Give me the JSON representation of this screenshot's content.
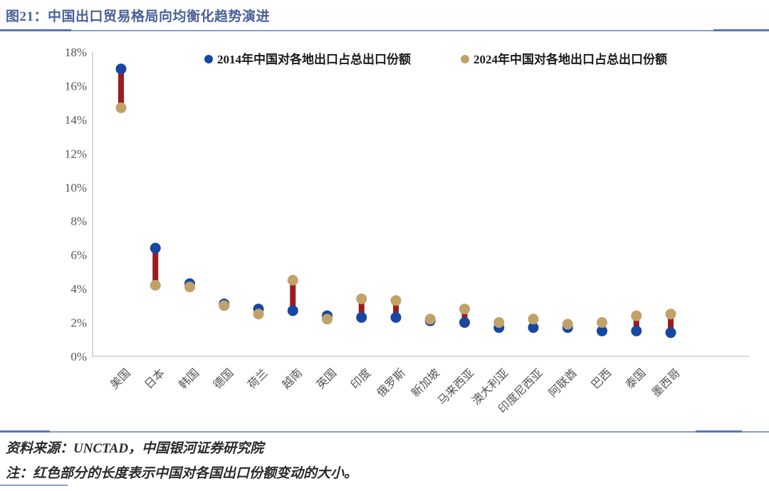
{
  "page": {
    "title": "图21：中国出口贸易格局向均衡化趋势演进"
  },
  "colors": {
    "title_blue": "#4a6097",
    "rule_blue": "#8b9cc8",
    "rule_blue_dark": "#5b76b4",
    "series_2014_blue": "#1747a0",
    "series_2024_tan": "#c0a269",
    "connector_red": "#9c1b1f",
    "axis_text": "#555555",
    "axis_line": "#d8d8d8",
    "legend_text": "#1a1a1a"
  },
  "chart_data": {
    "type": "scatter",
    "subtype": "dumbbell",
    "title": "",
    "xlabel": "",
    "ylabel": "",
    "ylim": [
      0,
      18
    ],
    "ytick_step": 2,
    "ytick_suffix": "%",
    "grid": false,
    "legend_position": "top-center",
    "categories": [
      "美国",
      "日本",
      "韩国",
      "德国",
      "荷兰",
      "越南",
      "英国",
      "印度",
      "俄罗斯",
      "新加坡",
      "马来西亚",
      "澳大利亚",
      "印度尼西亚",
      "阿联酋",
      "巴西",
      "泰国",
      "墨西哥"
    ],
    "series": [
      {
        "name": "2014年中国对各地出口占总出口份额",
        "color": "#1747a0",
        "values": [
          17.0,
          6.4,
          4.3,
          3.1,
          2.8,
          2.7,
          2.4,
          2.3,
          2.3,
          2.1,
          2.0,
          1.7,
          1.7,
          1.7,
          1.5,
          1.5,
          1.4
        ]
      },
      {
        "name": "2024年中国对各地出口占总出口份额",
        "color": "#c0a269",
        "values": [
          14.7,
          4.2,
          4.1,
          3.0,
          2.5,
          4.5,
          2.2,
          3.4,
          3.3,
          2.2,
          2.8,
          2.0,
          2.2,
          1.9,
          2.0,
          2.4,
          2.5
        ]
      }
    ],
    "connector_color": "#9c1b1f"
  },
  "footer": {
    "source": "资料来源：UNCTAD，中国银河证券研究院",
    "note": "注：红色部分的长度表示中国对各国出口份额变动的大小。"
  }
}
